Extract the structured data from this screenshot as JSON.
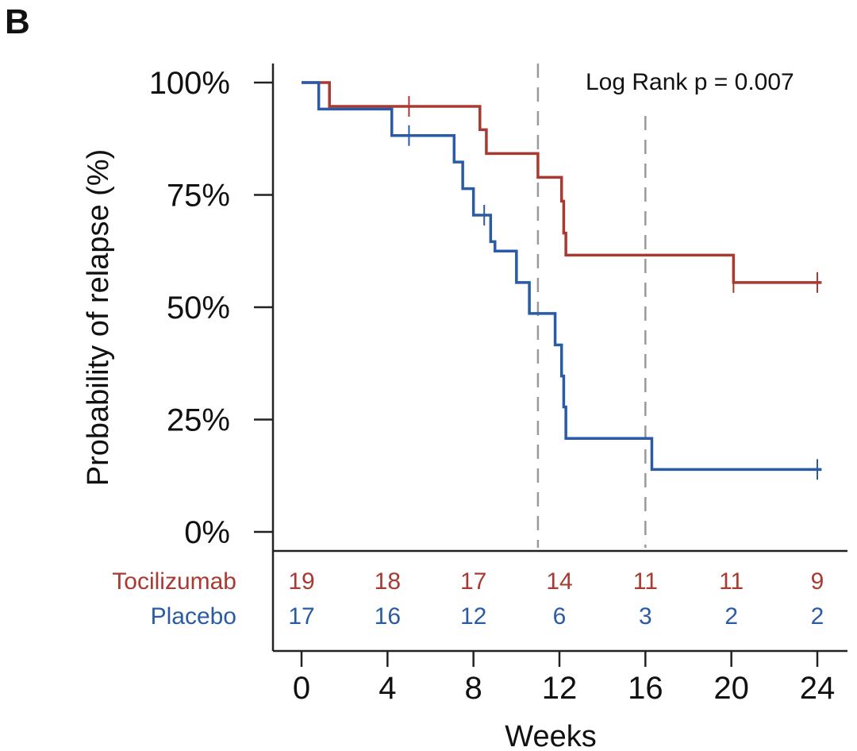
{
  "panel_label": "B",
  "chart_data": {
    "type": "line",
    "subtype": "kaplan-meier",
    "title": "",
    "xlabel": "Weeks",
    "ylabel": "Probability of relapse (%)",
    "xlim": [
      0,
      24
    ],
    "ylim": [
      0,
      100
    ],
    "x_ticks": [
      0,
      4,
      8,
      12,
      16,
      20,
      24
    ],
    "y_ticks": [
      {
        "value": 0,
        "label": "0%"
      },
      {
        "value": 25,
        "label": "25%"
      },
      {
        "value": 50,
        "label": "50%"
      },
      {
        "value": 75,
        "label": "75%"
      },
      {
        "value": 100,
        "label": "100%"
      }
    ],
    "annotation": "Log Rank p = 0.007",
    "reference_lines_x": [
      11,
      16
    ],
    "series": [
      {
        "name": "Tocilizumab",
        "color": "#a83a32",
        "steps": [
          [
            0,
            100
          ],
          [
            1.3,
            94.7
          ],
          [
            8.3,
            89.5
          ],
          [
            8.6,
            84.2
          ],
          [
            11,
            78.9
          ],
          [
            12.1,
            73.6
          ],
          [
            12.2,
            66.5
          ],
          [
            12.3,
            61.6
          ],
          [
            20.1,
            55.5
          ],
          [
            24.2,
            55.5
          ]
        ],
        "censored": [
          [
            5,
            94.7
          ],
          [
            20.1,
            55.5
          ],
          [
            24,
            55.5
          ]
        ]
      },
      {
        "name": "Placebo",
        "color": "#2a5ba4",
        "steps": [
          [
            0,
            100
          ],
          [
            0.8,
            94.1
          ],
          [
            4.2,
            88.2
          ],
          [
            7.1,
            82.3
          ],
          [
            7.5,
            76.4
          ],
          [
            8,
            70.5
          ],
          [
            8.8,
            64.6
          ],
          [
            9,
            62.5
          ],
          [
            10,
            55.5
          ],
          [
            10.6,
            48.6
          ],
          [
            11.8,
            41.6
          ],
          [
            12.1,
            34.7
          ],
          [
            12.2,
            27.8
          ],
          [
            12.3,
            20.8
          ],
          [
            16.3,
            13.9
          ],
          [
            24.2,
            13.9
          ]
        ],
        "censored": [
          [
            5,
            88.2
          ],
          [
            8.5,
            70.5
          ],
          [
            24,
            13.9
          ]
        ]
      }
    ],
    "risk_table": {
      "times": [
        0,
        4,
        8,
        12,
        16,
        20,
        24
      ],
      "rows": [
        {
          "label": "Tocilizumab",
          "color": "#a83a32",
          "values": [
            19,
            18,
            17,
            14,
            11,
            11,
            9
          ]
        },
        {
          "label": "Placebo",
          "color": "#2a5ba4",
          "values": [
            17,
            16,
            12,
            6,
            3,
            2,
            2
          ]
        }
      ]
    }
  }
}
